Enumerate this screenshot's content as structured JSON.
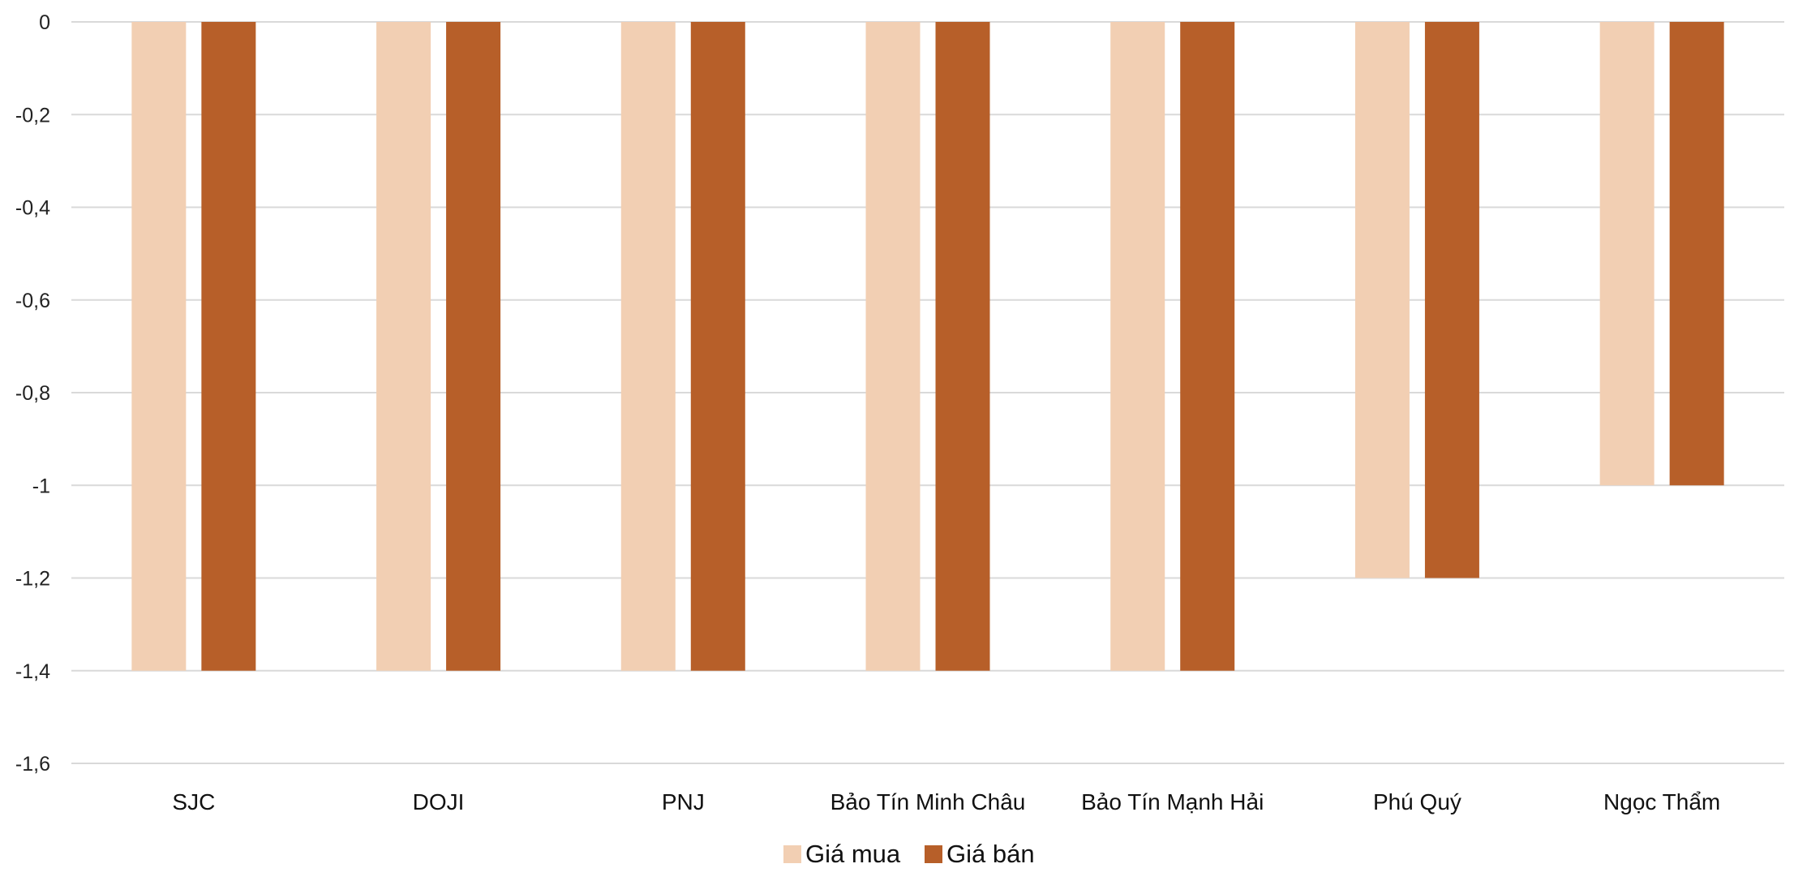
{
  "chart_data": {
    "type": "bar",
    "title": "",
    "xlabel": "",
    "ylabel": "",
    "categories": [
      "SJC",
      "DOJI",
      "PNJ",
      "Bảo Tín Minh Châu",
      "Bảo Tín Mạnh Hải",
      "Phú Quý",
      "Ngọc Thẩm"
    ],
    "series": [
      {
        "name": "Giá mua",
        "color": "#f2cfb3",
        "values": [
          -1.4,
          -1.4,
          -1.4,
          -1.4,
          -1.4,
          -1.2,
          -1.0
        ]
      },
      {
        "name": "Giá bán",
        "color": "#b75f29",
        "values": [
          -1.4,
          -1.4,
          -1.4,
          -1.4,
          -1.4,
          -1.2,
          -1.0
        ]
      }
    ],
    "ylim": [
      -1.6,
      0
    ],
    "y_ticks": [
      0,
      -0.2,
      -0.4,
      -0.6,
      -0.8,
      -1,
      -1.2,
      -1.4,
      -1.6
    ],
    "y_tick_labels": [
      "0",
      "-0,2",
      "-0,4",
      "-0,6",
      "-0,8",
      "-1",
      "-1,2",
      "-1,4",
      "-1,6"
    ],
    "grid": true,
    "legend_position": "bottom"
  }
}
